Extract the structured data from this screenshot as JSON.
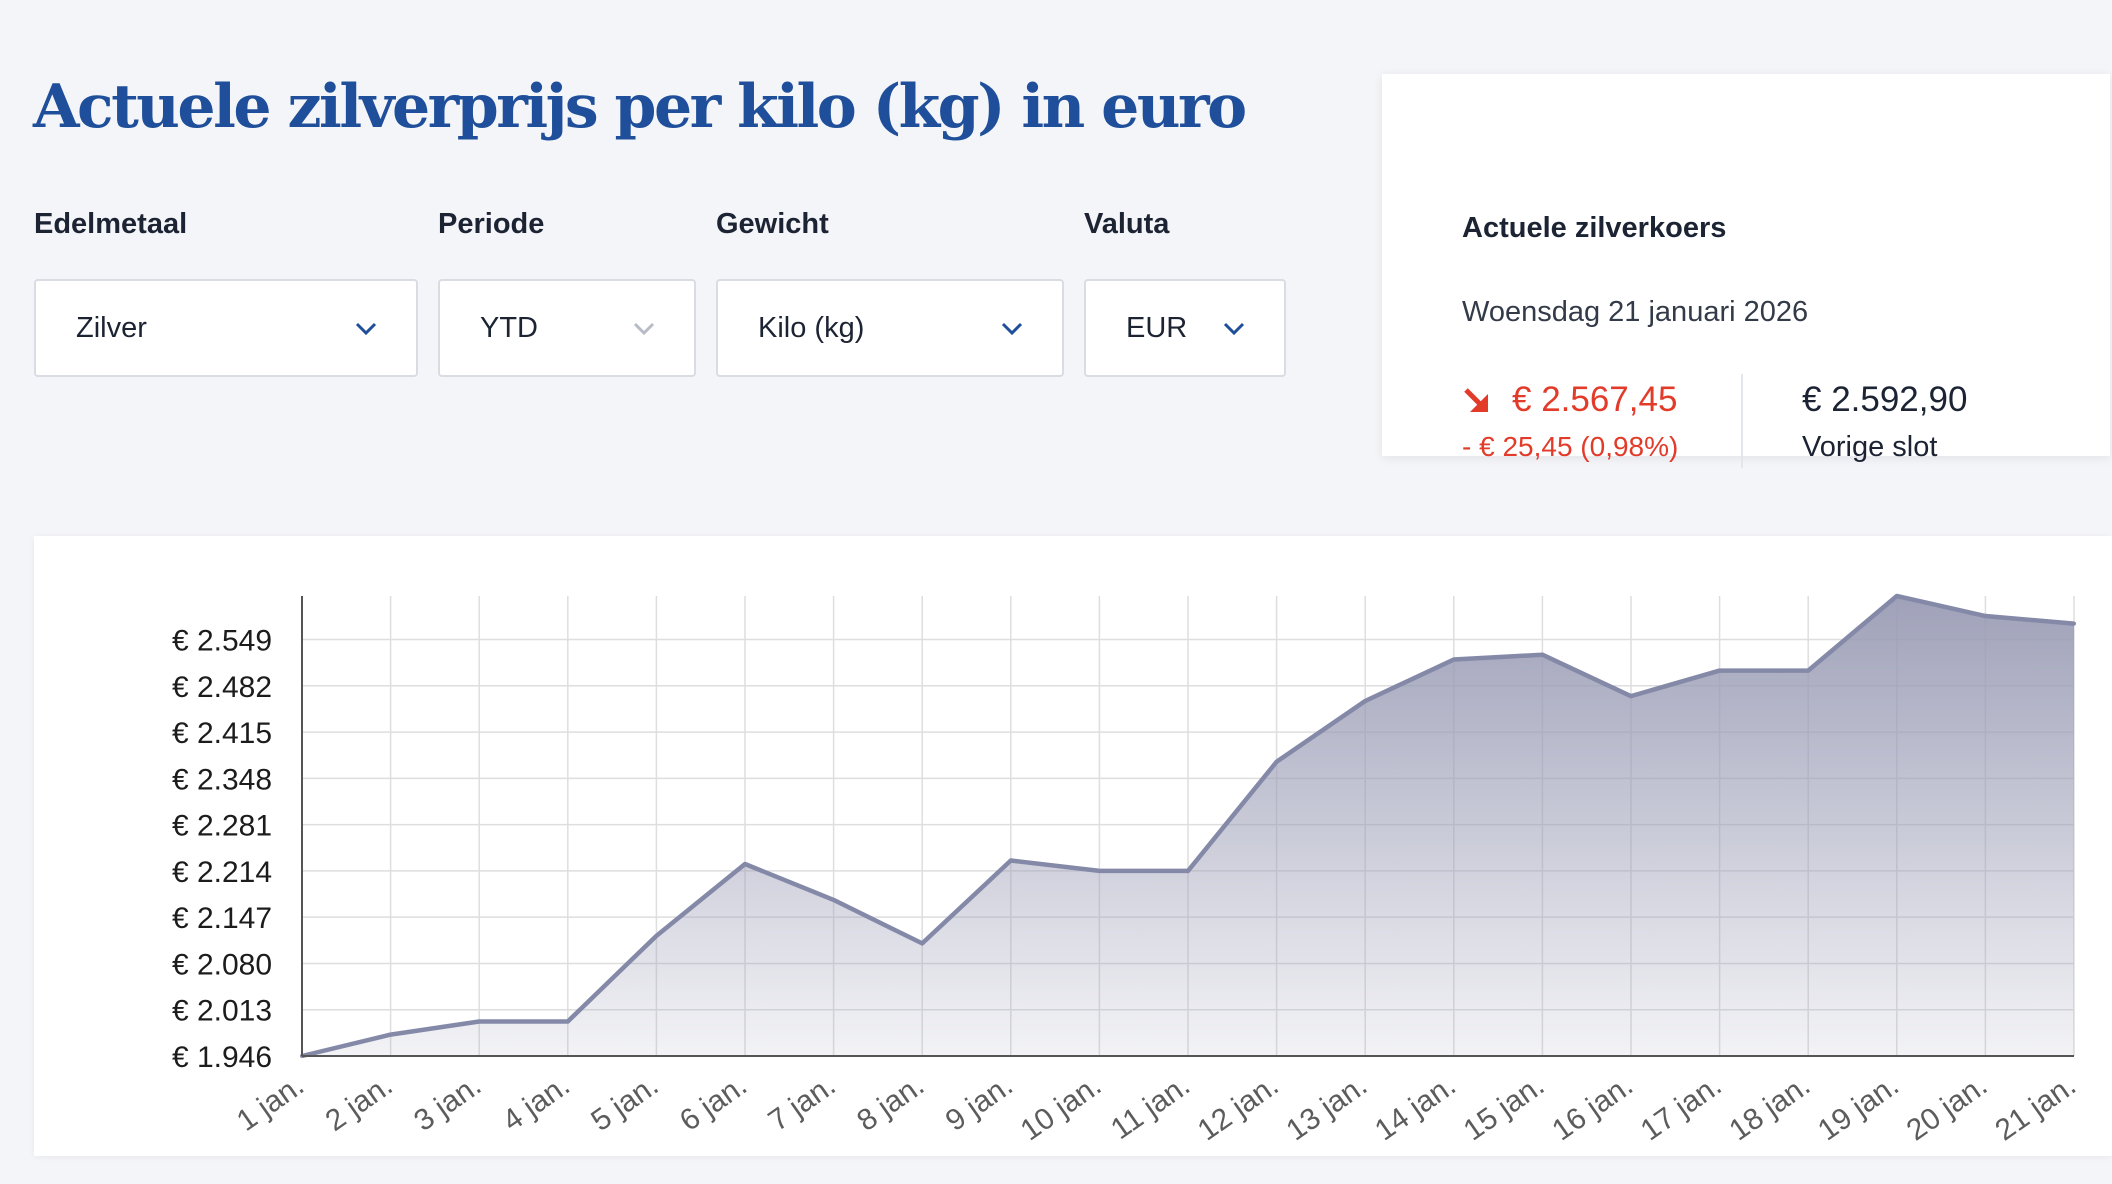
{
  "page": {
    "title": "Actuele zilverprijs per kilo (kg) in euro"
  },
  "filters": [
    {
      "label": "Edelmetaal",
      "value": "Zilver",
      "icon": "chevron-down-icon",
      "chevron_color": "#1f4f9a"
    },
    {
      "label": "Periode",
      "value": "YTD",
      "icon": "chevron-down-icon",
      "chevron_color": "#b8bcc6"
    },
    {
      "label": "Gewicht",
      "value": "Kilo (kg)",
      "icon": "chevron-down-icon",
      "chevron_color": "#1f4f9a"
    },
    {
      "label": "Valuta",
      "value": "EUR",
      "icon": "chevron-down-icon",
      "chevron_color": "#1f4f9a"
    }
  ],
  "quote": {
    "title": "Actuele zilverkoers",
    "date": "Woensdag 21 januari 2026",
    "trend_icon": "arrow-down-right-icon",
    "current_price": "€ 2.567,45",
    "change": "- € 25,45 (0,98%)",
    "previous_price": "€ 2.592,90",
    "previous_label": "Vorige slot",
    "down_color": "#e23b2a"
  },
  "chart_data": {
    "type": "area",
    "x": [
      "1 jan.",
      "2 jan.",
      "3 jan.",
      "4 jan.",
      "5 jan.",
      "6 jan.",
      "7 jan.",
      "8 jan.",
      "9 jan.",
      "10 jan.",
      "11 jan.",
      "12 jan.",
      "13 jan.",
      "14 jan.",
      "15 jan.",
      "16 jan.",
      "17 jan.",
      "18 jan.",
      "19 jan.",
      "20 jan.",
      "21 jan."
    ],
    "series": [
      {
        "values": [
          1946,
          1977,
          1996,
          1996,
          2120,
          2224,
          2172,
          2109,
          2229,
          2214,
          2214,
          2372,
          2460,
          2520,
          2527,
          2467,
          2504,
          2504,
          2612,
          2583,
          2572
        ],
        "line_color": "#8589a8",
        "fill_color": "#9a9cb5"
      }
    ],
    "yticks": [
      "€ 1.946",
      "€ 2.013",
      "€ 2.080",
      "€ 2.147",
      "€ 2.214",
      "€ 2.281",
      "€ 2.348",
      "€ 2.415",
      "€ 2.482",
      "€ 2.549"
    ],
    "ytick_values": [
      1946,
      2013,
      2080,
      2147,
      2214,
      2281,
      2348,
      2415,
      2482,
      2549
    ],
    "ylim": [
      1946,
      2612
    ],
    "grid": true,
    "legend": "none"
  }
}
